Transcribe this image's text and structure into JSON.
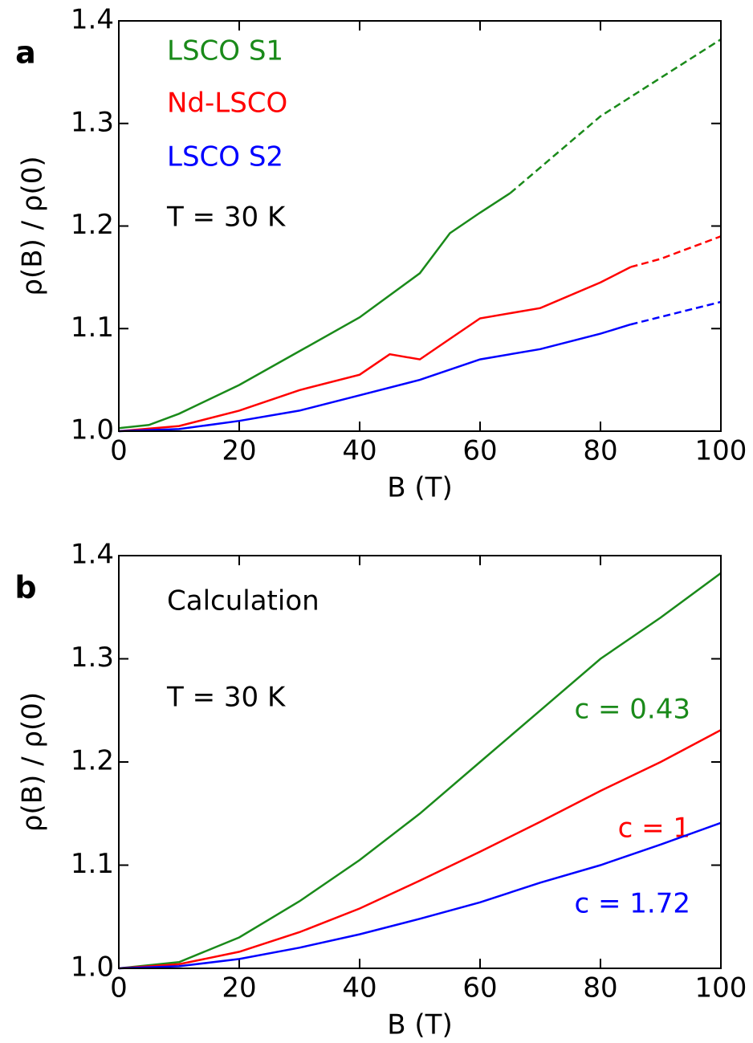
{
  "chart_data": [
    {
      "type": "line",
      "panel_label": "a",
      "x_label": "B (T)",
      "y_label": "ρ(B) / ρ(0)",
      "xlim": [
        0,
        100
      ],
      "ylim": [
        1.0,
        1.4
      ],
      "xticks": [
        0,
        20,
        40,
        60,
        80,
        100
      ],
      "yticks": [
        {
          "value": 1.0,
          "label": "1.0"
        },
        1.1,
        1.2,
        1.3,
        1.4
      ],
      "annotations": [
        "T = 30 K"
      ],
      "series": [
        {
          "name": "LSCO S1",
          "color": "#1a8a1a",
          "x": [
            0,
            5,
            10,
            20,
            30,
            40,
            50,
            55,
            60,
            65
          ],
          "values": [
            1.003,
            1.006,
            1.017,
            1.045,
            1.078,
            1.111,
            1.154,
            1.193,
            1.213,
            1.232
          ],
          "fit_x": [
            65,
            80,
            100
          ],
          "fit_values": [
            1.232,
            1.307,
            1.382
          ]
        },
        {
          "name": "Nd-LSCO",
          "color": "#ff0000",
          "x": [
            0,
            10,
            20,
            30,
            40,
            45,
            50,
            55,
            60,
            70,
            80,
            85
          ],
          "values": [
            1.0,
            1.005,
            1.02,
            1.04,
            1.055,
            1.075,
            1.07,
            1.09,
            1.11,
            1.12,
            1.145,
            1.16
          ],
          "fit_x": [
            85,
            90,
            100
          ],
          "fit_values": [
            1.16,
            1.168,
            1.19
          ]
        },
        {
          "name": "LSCO S2",
          "color": "#0000ff",
          "x": [
            0,
            10,
            20,
            30,
            40,
            50,
            60,
            70,
            80,
            85
          ],
          "values": [
            1.0,
            1.002,
            1.01,
            1.02,
            1.035,
            1.05,
            1.07,
            1.08,
            1.095,
            1.104
          ],
          "fit_x": [
            85,
            100
          ],
          "fit_values": [
            1.104,
            1.126
          ]
        }
      ]
    },
    {
      "type": "line",
      "panel_label": "b",
      "x_label": "B (T)",
      "y_label": "ρ(B) / ρ(0)",
      "xlim": [
        0,
        100
      ],
      "ylim": [
        1.0,
        1.4
      ],
      "xticks": [
        0,
        20,
        40,
        60,
        80,
        100
      ],
      "yticks": [
        {
          "value": 1.0,
          "label": "1.0"
        },
        1.1,
        1.2,
        1.3,
        1.4
      ],
      "annotations": [
        "Calculation",
        "T = 30 K"
      ],
      "series": [
        {
          "name": "c = 0.43",
          "color": "#1a8a1a",
          "x": [
            0,
            10,
            20,
            30,
            40,
            50,
            60,
            70,
            80,
            90,
            100
          ],
          "values": [
            1.0,
            1.006,
            1.03,
            1.065,
            1.105,
            1.15,
            1.2,
            1.25,
            1.3,
            1.34,
            1.383
          ]
        },
        {
          "name": "c = 1",
          "color": "#ff0000",
          "x": [
            0,
            10,
            20,
            30,
            40,
            50,
            60,
            70,
            80,
            90,
            100
          ],
          "values": [
            1.0,
            1.004,
            1.016,
            1.035,
            1.058,
            1.085,
            1.113,
            1.142,
            1.172,
            1.2,
            1.231
          ]
        },
        {
          "name": "c = 1.72",
          "color": "#0000ff",
          "x": [
            0,
            10,
            20,
            30,
            40,
            50,
            60,
            70,
            80,
            90,
            100
          ],
          "values": [
            1.0,
            1.002,
            1.009,
            1.02,
            1.033,
            1.048,
            1.064,
            1.083,
            1.1,
            1.12,
            1.141
          ]
        }
      ]
    }
  ]
}
